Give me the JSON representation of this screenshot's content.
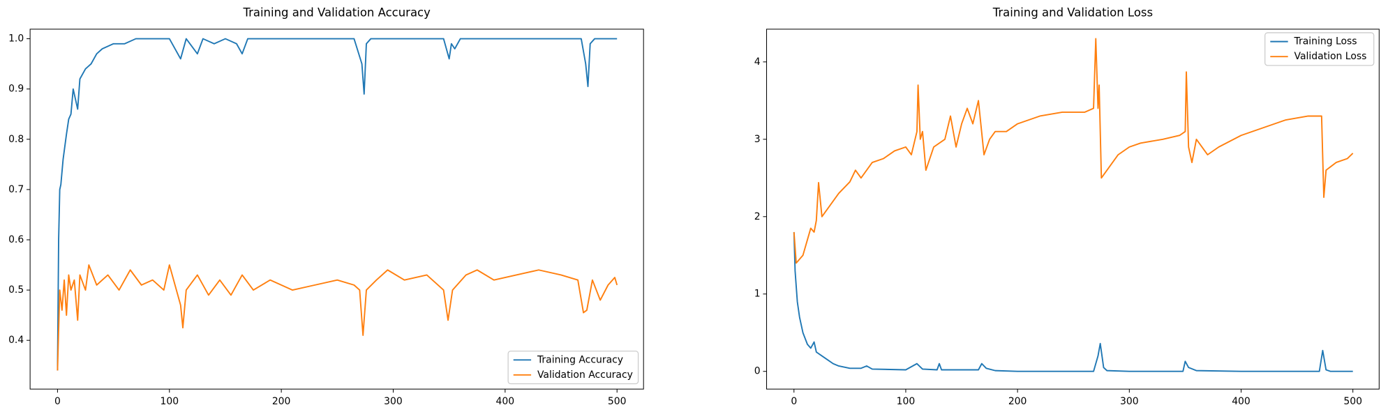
{
  "chart_data": [
    {
      "type": "line",
      "title": "Training and Validation Accuracy",
      "xlim": [
        -24.5,
        523.7
      ],
      "ylim": [
        0.303,
        1.019
      ],
      "xticks": [
        0,
        100,
        200,
        300,
        400,
        500
      ],
      "yticks": [
        0.4,
        0.5,
        0.6,
        0.7,
        0.8,
        0.9,
        {
          "value": 1,
          "label": "1.0"
        }
      ],
      "legend": "lower right",
      "series": [
        {
          "name": "Training Accuracy",
          "color": "#1f77b4",
          "x": [
            0,
            1,
            2,
            3,
            5,
            8,
            10,
            12,
            14,
            16,
            18,
            20,
            25,
            30,
            35,
            40,
            50,
            60,
            70,
            100,
            110,
            115,
            125,
            130,
            140,
            150,
            160,
            165,
            170,
            200,
            265,
            272,
            274,
            276,
            280,
            345,
            350,
            352,
            355,
            360,
            468,
            472,
            474,
            476,
            480,
            500
          ],
          "values": [
            0.34,
            0.6,
            0.7,
            0.71,
            0.76,
            0.81,
            0.84,
            0.85,
            0.9,
            0.88,
            0.86,
            0.92,
            0.94,
            0.95,
            0.97,
            0.98,
            0.99,
            0.99,
            1.0,
            1.0,
            0.96,
            1.0,
            0.97,
            1.0,
            0.99,
            1.0,
            0.99,
            0.97,
            1.0,
            1.0,
            1.0,
            0.95,
            0.89,
            0.99,
            1.0,
            1.0,
            0.96,
            0.99,
            0.98,
            1.0,
            1.0,
            0.95,
            0.905,
            0.99,
            1.0,
            1.0
          ]
        },
        {
          "name": "Validation Accuracy",
          "color": "#ff7f0e",
          "x": [
            0,
            2,
            4,
            6,
            8,
            10,
            12,
            15,
            18,
            20,
            25,
            28,
            35,
            45,
            55,
            65,
            75,
            85,
            95,
            100,
            105,
            110,
            112,
            115,
            125,
            135,
            145,
            155,
            165,
            175,
            190,
            210,
            230,
            250,
            265,
            270,
            273,
            276,
            285,
            295,
            310,
            330,
            345,
            349,
            353,
            365,
            375,
            390,
            410,
            430,
            450,
            465,
            470,
            473,
            478,
            485,
            492,
            498,
            500
          ],
          "values": [
            0.34,
            0.5,
            0.46,
            0.52,
            0.45,
            0.53,
            0.5,
            0.52,
            0.44,
            0.53,
            0.5,
            0.55,
            0.51,
            0.53,
            0.5,
            0.54,
            0.51,
            0.52,
            0.5,
            0.55,
            0.51,
            0.47,
            0.425,
            0.5,
            0.53,
            0.49,
            0.52,
            0.49,
            0.53,
            0.5,
            0.52,
            0.5,
            0.51,
            0.52,
            0.51,
            0.5,
            0.41,
            0.5,
            0.52,
            0.54,
            0.52,
            0.53,
            0.5,
            0.44,
            0.5,
            0.53,
            0.54,
            0.52,
            0.53,
            0.54,
            0.53,
            0.52,
            0.455,
            0.46,
            0.52,
            0.48,
            0.51,
            0.525,
            0.51
          ]
        }
      ]
    },
    {
      "type": "line",
      "title": "Training and Validation Loss",
      "xlim": [
        -24.5,
        523.5
      ],
      "ylim": [
        -0.229,
        4.423
      ],
      "xticks": [
        0,
        100,
        200,
        300,
        400,
        500
      ],
      "yticks": [
        0,
        1,
        2,
        3,
        4
      ],
      "legend": "upper right",
      "series": [
        {
          "name": "Training Loss",
          "color": "#1f77b4",
          "x": [
            0,
            1,
            3,
            5,
            8,
            12,
            15,
            18,
            20,
            25,
            30,
            35,
            40,
            50,
            60,
            65,
            70,
            100,
            110,
            115,
            128,
            130,
            132,
            165,
            168,
            172,
            180,
            200,
            268,
            272,
            274,
            277,
            280,
            300,
            348,
            350,
            353,
            360,
            400,
            470,
            473,
            476,
            480,
            500
          ],
          "values": [
            1.8,
            1.3,
            0.9,
            0.7,
            0.5,
            0.35,
            0.3,
            0.38,
            0.25,
            0.2,
            0.15,
            0.1,
            0.07,
            0.04,
            0.04,
            0.07,
            0.03,
            0.02,
            0.1,
            0.03,
            0.02,
            0.1,
            0.02,
            0.02,
            0.1,
            0.04,
            0.01,
            0.0,
            0.0,
            0.2,
            0.36,
            0.05,
            0.01,
            0.0,
            0.0,
            0.13,
            0.05,
            0.01,
            0.0,
            0.0,
            0.27,
            0.02,
            0.0,
            0.0
          ]
        },
        {
          "name": "Validation Loss",
          "color": "#ff7f0e",
          "x": [
            0,
            2,
            5,
            8,
            12,
            15,
            18,
            20,
            22,
            25,
            30,
            40,
            50,
            55,
            60,
            70,
            80,
            90,
            100,
            105,
            110,
            111,
            113,
            115,
            118,
            125,
            135,
            140,
            145,
            150,
            155,
            160,
            165,
            170,
            175,
            180,
            190,
            200,
            220,
            240,
            260,
            268,
            270,
            272,
            273,
            275,
            280,
            290,
            300,
            310,
            330,
            345,
            350,
            351,
            353,
            356,
            360,
            370,
            380,
            400,
            420,
            440,
            460,
            470,
            472,
            474,
            476,
            485,
            495,
            500
          ],
          "values": [
            1.8,
            1.4,
            1.45,
            1.5,
            1.7,
            1.85,
            1.8,
            1.95,
            2.44,
            2.0,
            2.1,
            2.3,
            2.45,
            2.6,
            2.5,
            2.7,
            2.75,
            2.85,
            2.9,
            2.8,
            3.1,
            3.7,
            3.0,
            3.1,
            2.6,
            2.9,
            3.0,
            3.3,
            2.9,
            3.2,
            3.4,
            3.2,
            3.5,
            2.8,
            3.0,
            3.1,
            3.1,
            3.2,
            3.3,
            3.35,
            3.35,
            3.4,
            4.3,
            3.4,
            3.7,
            2.5,
            2.6,
            2.8,
            2.9,
            2.95,
            3.0,
            3.05,
            3.1,
            3.87,
            2.9,
            2.7,
            3.0,
            2.8,
            2.9,
            3.05,
            3.15,
            3.25,
            3.3,
            3.3,
            3.3,
            2.25,
            2.6,
            2.7,
            2.75,
            2.82
          ]
        }
      ]
    }
  ]
}
